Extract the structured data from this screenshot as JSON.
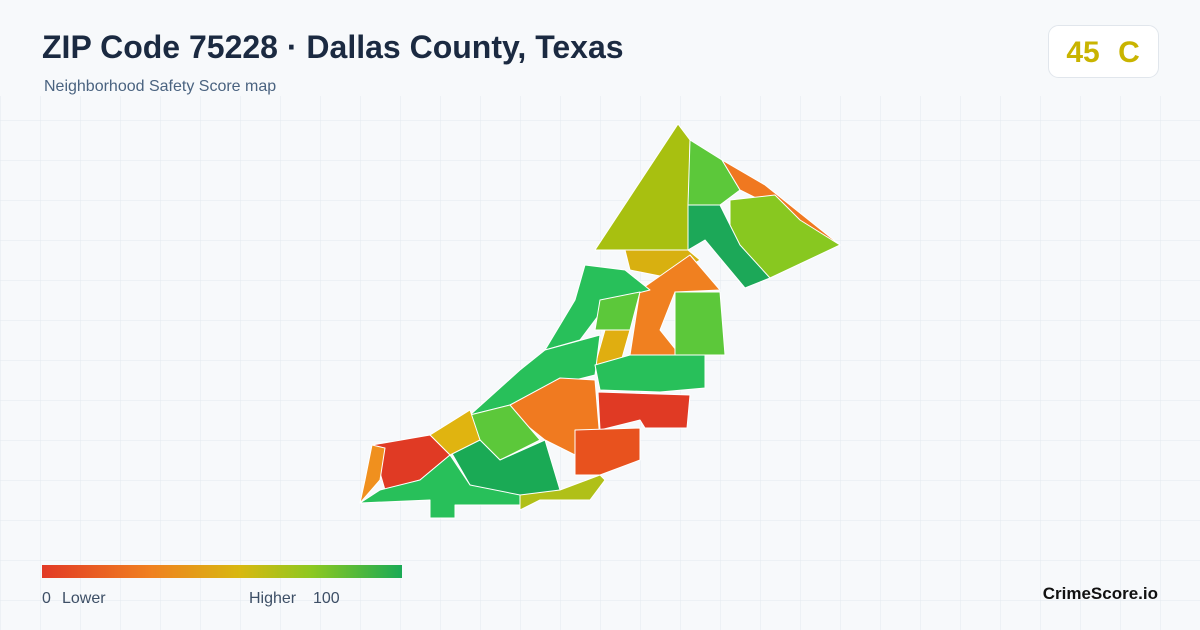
{
  "header": {
    "title": "ZIP Code 75228 · Dallas County, Texas",
    "subtitle": "Neighborhood Safety Score map"
  },
  "score": {
    "value": 45,
    "grade": "C"
  },
  "legend": {
    "min": 0,
    "min_label": "Lower",
    "max_label": "Higher",
    "max": 100
  },
  "brand": "CrimeScore.io"
}
